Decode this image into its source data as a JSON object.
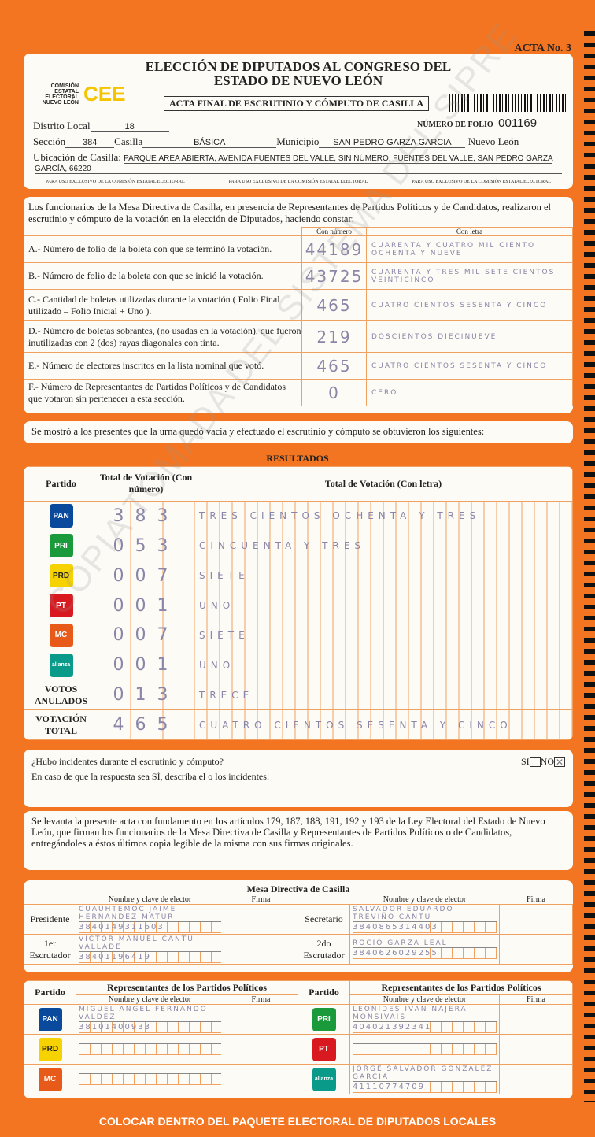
{
  "acta_no": "ACTA No. 3",
  "header": {
    "title1": "ELECCIÓN DE DIPUTADOS AL CONGRESO DEL",
    "title2": "ESTADO DE NUEVO LEÓN",
    "org": "COMISIÓN ESTATAL ELECTORAL NUEVO LEÓN",
    "logo": "CEE",
    "subtitle": "ACTA FINAL DE ESCRUTINIO Y CÓMPUTO DE CASILLA",
    "folio_label": "NÚMERO DE FOLIO",
    "folio": "001169",
    "distrito_label": "Distrito Local",
    "distrito": "18",
    "seccion_label": "Sección",
    "seccion": "384",
    "casilla_label": "Casilla",
    "casilla": "BÁSICA",
    "municipio_label": "Municipio",
    "municipio": "SAN PEDRO GARZA GARCIA",
    "estado": "Nuevo León",
    "ubicacion_label": "Ubicación de Casilla:",
    "ubicacion1": "PARQUE ÁREA ABIERTA, AVENIDA FUENTES DEL VALLE, SIN NÚMERO, FUENTES DEL VALLE, SAN PEDRO GARZA",
    "ubicacion2": "GARCÍA, 66220",
    "exclusive": "PARA USO EXCLUSIVO DE LA COMISIÓN ESTATAL ELECTORAL"
  },
  "intro": "Los funcionarios de la Mesa Directiva de Casilla, en presencia de Representantes de Partidos Políticos y de Candidatos, realizaron el escrutinio y cómputo de la votación en la elección de Diputados, haciendo constar:",
  "col_num": "Con número",
  "col_letra": "Con letra",
  "items": [
    {
      "label": "A.- Número de folio de la boleta con que se terminó la votación.",
      "num": "44189",
      "letra": "CUARENTA Y CUATRO MIL CIENTO OCHENTA Y NUEVE"
    },
    {
      "label": "B.- Número de folio de la boleta con que se inició la votación.",
      "num": "43725",
      "letra": "CUARENTA Y TRES MIL SETE CIENTOS VEINTICINCO"
    },
    {
      "label": "C.- Cantidad de boletas utilizadas durante la votación ( Folio Final utilizado – Folio Inicial + Uno ).",
      "num": "465",
      "letra": "CUATRO CIENTOS SESENTA Y CINCO"
    },
    {
      "label": "D.- Número de boletas sobrantes, (no usadas en la votación), que fueron inutilizadas con 2 (dos) rayas diagonales con tinta.",
      "num": "219",
      "letra": "DOSCIENTOS DIECINUEVE"
    },
    {
      "label": "E.- Número de electores inscritos en la lista nominal que votó.",
      "num": "465",
      "letra": "CUATRO CIENTOS SESENTA Y CINCO"
    },
    {
      "label": "F.- Número de Representantes de Partidos Políticos y de Candidatos que votaron sin pertenecer a esta sección.",
      "num": "0",
      "letra": "CERO"
    }
  ],
  "urna_text": "Se mostró a los presentes que la urna quedó vacía y efectuado el escrutinio y cómputo se obtuvieron los siguientes:",
  "resultados": {
    "title": "RESULTADOS",
    "h_partido": "Partido",
    "h_num": "Total de Votación (Con número)",
    "h_letra": "Total de Votación (Con letra)",
    "rows": [
      {
        "party": "PAN",
        "color": "#0a4a9c",
        "num": "383",
        "letra": "TRES CIENTOS OCHENTA Y TRES"
      },
      {
        "party": "PRI",
        "color": "#1a9a3a",
        "num": "053",
        "letra": "CINCUENTA Y TRES"
      },
      {
        "party": "PRD",
        "color": "#f6d300",
        "num": "007",
        "letra": "SIETE"
      },
      {
        "party": "PT",
        "color": "#d8191f",
        "num": "001",
        "letra": "UNO"
      },
      {
        "party": "MC",
        "color": "#e85a1a",
        "num": "007",
        "letra": "SIETE"
      },
      {
        "party": "alianza",
        "color": "#0a9a8a",
        "num": "001",
        "letra": "UNO"
      },
      {
        "party": "VOTOS ANULADOS",
        "color": "",
        "num": "013",
        "letra": "TRECE"
      },
      {
        "party": "VOTACIÓN TOTAL",
        "color": "",
        "num": "465",
        "letra": "CUATRO CIENTOS SESENTA Y CINCO"
      }
    ]
  },
  "incidentes": {
    "question": "¿Hubo incidentes durante el escrutinio y cómputo?",
    "si": "SI",
    "no": "NO",
    "no_checked": true,
    "describe": "En caso de que la respuesta sea SÍ, describa el o los incidentes:"
  },
  "legal": "Se levanta la presente acta con fundamento en los artículos 179, 187, 188, 191, 192 y 193 de la Ley Electoral del Estado de Nuevo León, que firman los funcionarios de la Mesa Directiva de Casilla y Representantes de Partidos Políticos o de Candidatos, entregándoles a éstos últimos copia legible de la misma con sus firmas originales.",
  "mesa": {
    "title": "Mesa Directiva de Casilla",
    "h_nombre": "Nombre y clave de elector",
    "h_firma": "Firma",
    "members": [
      {
        "role": "Presidente",
        "name": "CUAUHTEMOC JAIME HERNANDEZ MATUR",
        "clave": "3840149311603"
      },
      {
        "role": "Secretario",
        "name": "SALVADOR EDUARDO TREVIÑO CANTU",
        "clave": "3840865314403"
      },
      {
        "role": "1er Escrutador",
        "name": "VICTOR MANUEL CANTU VALLADE",
        "clave": "38401196419"
      },
      {
        "role": "2do Escrutador",
        "name": "ROCIO GARZA LEAL",
        "clave": "3840626029255"
      }
    ]
  },
  "reps": {
    "h_partido": "Partido",
    "h_rep": "Representantes de los Partidos Políticos",
    "h_nombre": "Nombre y clave de elector",
    "h_firma": "Firma",
    "rows": [
      {
        "party": "PAN",
        "color": "#0a4a9c",
        "name": "MIGUEL ANGEL FERNANDO VALDEZ",
        "clave": "38101400933"
      },
      {
        "party": "PRI",
        "color": "#1a9a3a",
        "name": "LEONIDES IVAN NAJERA MONSIVAIS",
        "clave": "404021392341"
      },
      {
        "party": "PRD",
        "color": "#f6d300",
        "name": "",
        "clave": ""
      },
      {
        "party": "PT",
        "color": "#d8191f",
        "name": "",
        "clave": ""
      },
      {
        "party": "MC",
        "color": "#e85a1a",
        "name": "",
        "clave": ""
      },
      {
        "party": "alianza",
        "color": "#0a9a8a",
        "name": "JORGE SALVADOR GONZALEZ GARCIA",
        "clave": "41110774709"
      }
    ]
  },
  "footer": "COLOCAR DENTRO DEL PAQUETE ELECTORAL DE DIPUTADOS LOCALES",
  "watermark": "COPIA TOMADA DEL SISTEMA DEL SIPRE"
}
